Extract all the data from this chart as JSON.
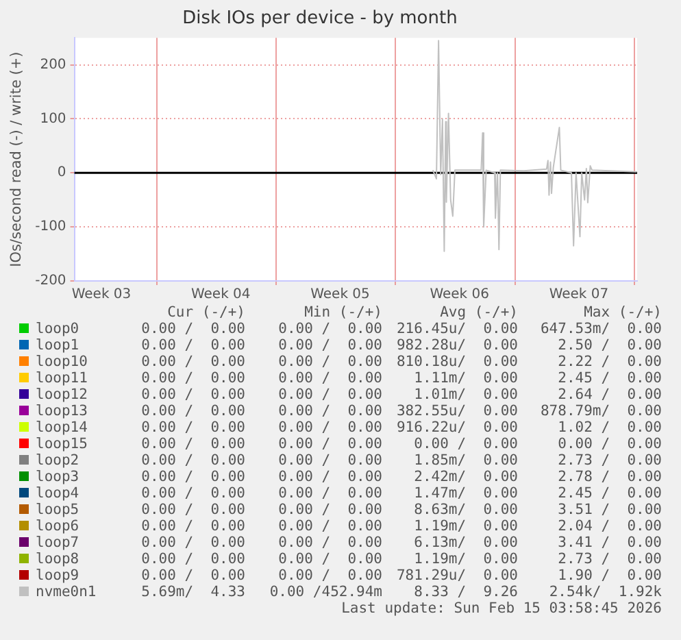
{
  "chart_data": {
    "type": "line",
    "title": "Disk IOs per device - by month",
    "ylabel": "IOs/second read (-) / write (+)",
    "xlim": [
      "2026-01-13T04:00",
      "2026-02-15T04:00"
    ],
    "xticks": [
      {
        "value": "2026-01-14T18:00",
        "label": "Week 03"
      },
      {
        "value": "2026-01-18T00:00",
        "label": null
      },
      {
        "value": "2026-01-21T18:00",
        "label": "Week 04"
      },
      {
        "value": "2026-01-25T00:00",
        "label": null
      },
      {
        "value": "2026-01-28T18:00",
        "label": "Week 05"
      },
      {
        "value": "2026-02-01T00:00",
        "label": null
      },
      {
        "value": "2026-02-04T18:00",
        "label": "Week 06"
      },
      {
        "value": "2026-02-08T00:00",
        "label": null
      },
      {
        "value": "2026-02-11T18:00",
        "label": "Week 07"
      },
      {
        "value": "2026-02-15T00:00",
        "label": null
      }
    ],
    "ylim": [
      -200,
      250
    ],
    "yticks": [
      -200,
      -100,
      0,
      100,
      200
    ],
    "grid": true,
    "legend": "bottom",
    "marker": "none",
    "ref_lines": [
      {
        "axis": "y",
        "value": 0,
        "color": "#000000"
      }
    ],
    "series": [
      {
        "name": "loop0",
        "color": "#00cc00"
      },
      {
        "name": "loop1",
        "color": "#0066b3"
      },
      {
        "name": "loop10",
        "color": "#ff8000"
      },
      {
        "name": "loop11",
        "color": "#ffcc00"
      },
      {
        "name": "loop12",
        "color": "#330099"
      },
      {
        "name": "loop13",
        "color": "#990099"
      },
      {
        "name": "loop14",
        "color": "#ccff00"
      },
      {
        "name": "loop15",
        "color": "#ff0000"
      },
      {
        "name": "loop2",
        "color": "#808080"
      },
      {
        "name": "loop3",
        "color": "#008f00"
      },
      {
        "name": "loop4",
        "color": "#00487d"
      },
      {
        "name": "loop5",
        "color": "#b35a00"
      },
      {
        "name": "loop6",
        "color": "#b38f00"
      },
      {
        "name": "loop7",
        "color": "#6b006b"
      },
      {
        "name": "loop8",
        "color": "#8fb300"
      },
      {
        "name": "loop9",
        "color": "#b30000"
      },
      {
        "name": "nvme0n1",
        "color": "#c0c0c0",
        "x": [
          "2026-02-03T04:30",
          "2026-02-03T09:30",
          "2026-02-03T12:30",
          "2026-02-03T15:30",
          "2026-02-03T18:00",
          "2026-02-03T20:30",
          "2026-02-03T22:30",
          "2026-02-03T23:30",
          "2026-02-04T02:30",
          "2026-02-04T05:30",
          "2026-02-04T08:30",
          "2026-02-04T11:30",
          "2026-02-06T00:30",
          "2026-02-06T02:30",
          "2026-02-06T04:00",
          "2026-02-06T07:30",
          "2026-02-06T19:30",
          "2026-02-06T20:30",
          "2026-02-06T23:30",
          "2026-02-07T01:30",
          "2026-02-07T03:30",
          "2026-02-08T12:30",
          "2026-02-09T20:30",
          "2026-02-09T22:30",
          "2026-02-10T00:00",
          "2026-02-10T02:00",
          "2026-02-10T03:30",
          "2026-02-10T06:00",
          "2026-02-10T14:30",
          "2026-02-10T16:30",
          "2026-02-11T07:30",
          "2026-02-11T10:30",
          "2026-02-11T14:00",
          "2026-02-11T19:30",
          "2026-02-11T22:00",
          "2026-02-12T02:00",
          "2026-02-12T04:30",
          "2026-02-12T06:30",
          "2026-02-12T10:00",
          "2026-02-12T12:30",
          "2026-02-15T03:30"
        ],
        "values": [
          5,
          -11,
          245,
          -3,
          100,
          -145,
          95,
          -54,
          110,
          -50,
          -80,
          5,
          5,
          74,
          -100,
          5,
          0,
          -84,
          0,
          -142,
          5,
          4,
          7,
          23,
          -41,
          20,
          -38,
          10,
          84,
          5,
          0,
          -135,
          0,
          -118,
          0,
          -50,
          8,
          -55,
          13,
          5,
          2
        ]
      }
    ],
    "annotations": [
      "Cur (-/+)",
      "Min (-/+)",
      "Avg (-/+)",
      "Max (-/+)",
      "0.00 /  0.00",
      "0.00 /  0.00",
      "216.45u/  0.00",
      "647.53m/  0.00",
      "0.00 /  0.00",
      "0.00 /  0.00",
      "982.28u/  0.00",
      "2.50 /  0.00",
      "0.00 /  0.00",
      "0.00 /  0.00",
      "810.18u/  0.00",
      "2.22 /  0.00",
      "0.00 /  0.00",
      "0.00 /  0.00",
      "1.11m/  0.00",
      "2.45 /  0.00",
      "0.00 /  0.00",
      "0.00 /  0.00",
      "1.01m/  0.00",
      "2.64 /  0.00",
      "0.00 /  0.00",
      "0.00 /  0.00",
      "382.55u/  0.00",
      "878.79m/  0.00",
      "0.00 /  0.00",
      "0.00 /  0.00",
      "916.22u/  0.00",
      "1.02 /  0.00",
      "0.00 /  0.00",
      "0.00 /  0.00",
      "0.00 /  0.00",
      "0.00 /  0.00",
      "0.00 /  0.00",
      "0.00 /  0.00",
      "1.85m/  0.00",
      "2.73 /  0.00",
      "0.00 /  0.00",
      "0.00 /  0.00",
      "2.42m/  0.00",
      "2.78 /  0.00",
      "0.00 /  0.00",
      "0.00 /  0.00",
      "1.47m/  0.00",
      "2.45 /  0.00",
      "0.00 /  0.00",
      "0.00 /  0.00",
      "8.63m/  0.00",
      "3.51 /  0.00",
      "0.00 /  0.00",
      "0.00 /  0.00",
      "1.19m/  0.00",
      "2.04 /  0.00",
      "0.00 /  0.00",
      "0.00 /  0.00",
      "6.13m/  0.00",
      "3.41 /  0.00",
      "0.00 /  0.00",
      "0.00 /  0.00",
      "1.19m/  0.00",
      "2.73 /  0.00",
      "0.00 /  0.00",
      "0.00 /  0.00",
      "781.29u/  0.00",
      "1.90 /  0.00",
      "5.69m/  4.33",
      "0.00 /452.94m",
      "8.33 /  9.26",
      "2.54k/  1.92k",
      "Last update: Sun Feb 15 03:58:45 2026"
    ]
  }
}
